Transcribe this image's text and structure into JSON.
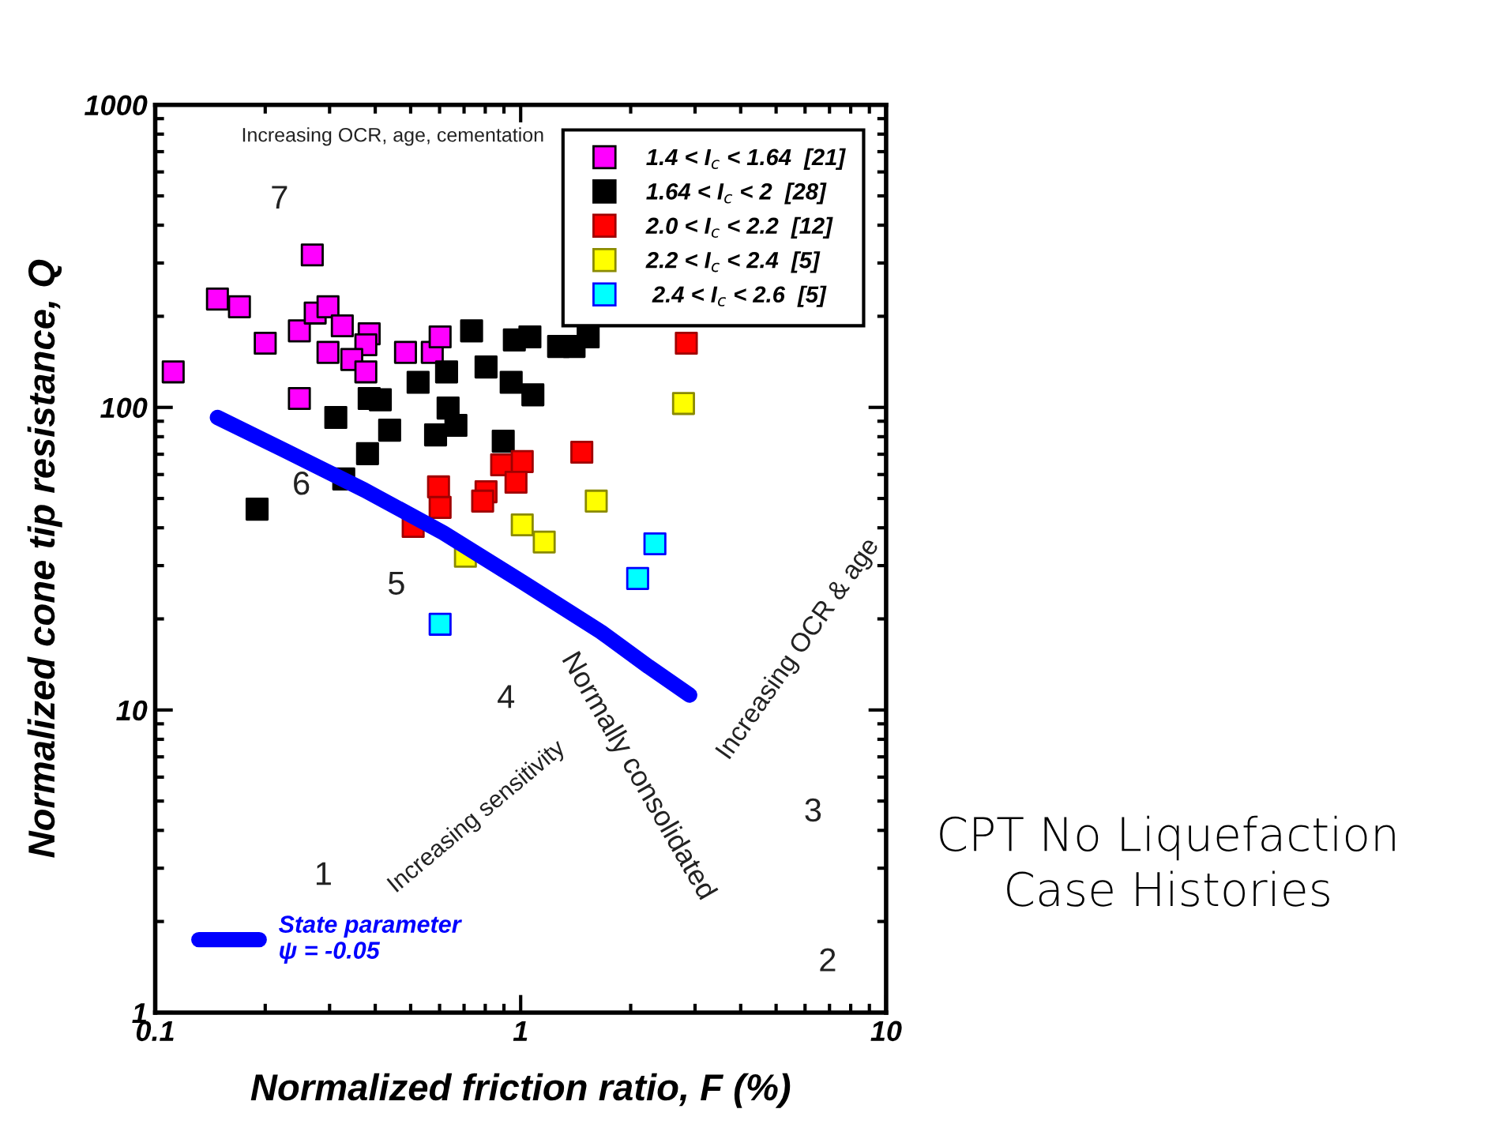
{
  "chart_data": {
    "type": "scatter",
    "xlabel": "Normalized friction ratio, F (%)",
    "ylabel": "Normalized cone tip resistance, Q",
    "log": "xy",
    "xlim": [
      0.1,
      10
    ],
    "ylim": [
      1,
      1000
    ],
    "xticks": [
      0.1,
      1,
      10
    ],
    "yticks": [
      1,
      10,
      100,
      1000
    ],
    "marker": "square",
    "grid": false,
    "legend": "top right",
    "series": [
      {
        "name": "1.4 < I$_{c}$ < 1.64  [21]",
        "color": "#ff00ff",
        "x": [
          0.269,
          0.148,
          0.17,
          0.2,
          0.112,
          0.248,
          0.274,
          0.297,
          0.325,
          0.297,
          0.385,
          0.377,
          0.345,
          0.377,
          0.484,
          0.573,
          0.602,
          0.248
        ],
        "values": [
          319,
          228,
          215,
          163,
          131,
          179,
          205,
          215,
          186,
          152,
          175,
          161,
          144,
          131,
          152,
          152,
          171,
          107
        ]
      },
      {
        "name": "1.64 < I$_{c}$ < 2  [28]",
        "color": "#000000",
        "x": [
          0.19,
          0.328,
          0.381,
          0.312,
          0.385,
          0.413,
          0.438,
          0.524,
          0.627,
          0.633,
          0.665,
          0.585,
          0.734,
          0.804,
          0.942,
          1.08,
          0.961,
          1.06,
          1.27,
          1.4,
          1.53,
          0.896
        ],
        "values": [
          46.1,
          58.0,
          70.3,
          92.6,
          107,
          106,
          84.1,
          121,
          131,
          99.5,
          87.2,
          81.1,
          179,
          136,
          121,
          110,
          167,
          171,
          159,
          159,
          171,
          77.3
        ]
      },
      {
        "name": "2.0 < I$_{c}$ < 2.2  [12]",
        "color": "#ff0000",
        "x": [
          2.84,
          1.47,
          0.887,
          1.01,
          0.971,
          0.596,
          0.602,
          0.804,
          0.787,
          0.508
        ],
        "values": [
          163,
          71.1,
          64.6,
          66.2,
          56.6,
          54.6,
          46.7,
          52.6,
          49.0,
          40.4
        ]
      },
      {
        "name": "2.2 < I$_{c}$ < 2.4  [5]",
        "color": "#ffff00",
        "x": [
          2.79,
          1.61,
          1.01,
          1.16,
          0.706
        ],
        "values": [
          103,
          49.0,
          40.9,
          35.9,
          32.2
        ]
      },
      {
        "name": " 2.4 < I$_{c}$ < 2.6  [5]",
        "color": "#00ffff",
        "x": [
          2.33,
          2.09,
          0.602
        ],
        "values": [
          35.4,
          27.2,
          19.2
        ]
      },
      {
        "type": "line",
        "marker": "none",
        "name": "State parameter\nψ = -0.05",
        "color": "#0000ff",
        "x": [
          0.148,
          0.227,
          0.374,
          0.614,
          1.01,
          1.66,
          2.24,
          2.9
        ],
        "values": [
          92.6,
          71.9,
          53.3,
          38.5,
          26.5,
          18.1,
          13.9,
          11.2
        ]
      }
    ],
    "annotations": [
      "1",
      "2",
      "3",
      "4",
      "5",
      "6",
      "7",
      "Increasing OCR, age, cementation",
      "Normally consolidated",
      "Increasing OCR & age",
      "Increasing sensitivity",
      "CPT No Liquefaction\nCase Histories"
    ]
  }
}
